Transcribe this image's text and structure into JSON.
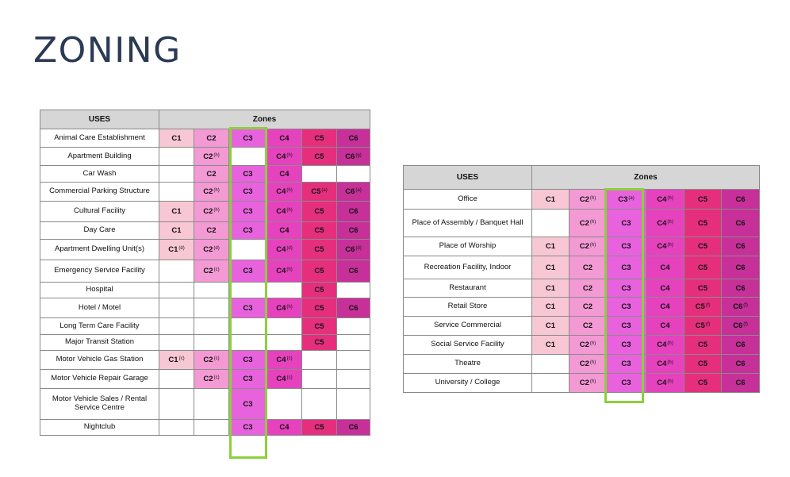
{
  "title": "ZONING",
  "colors": {
    "c1": "#f7c7d3",
    "c2": "#f39ad4",
    "c3": "#e862de",
    "c4": "#e642be",
    "c5": "#e52f7d",
    "c6": "#c63098",
    "header": "#d6d6d6",
    "highlight": "#8ccf3c"
  },
  "table_left": {
    "uses_header": "USES",
    "zones_header": "Zones",
    "columns": [
      "C1",
      "C2",
      "C3",
      "C4",
      "C5",
      "C6"
    ],
    "rows": [
      {
        "use": "Animal Care Establishment",
        "cells": [
          {
            "t": "C1"
          },
          {
            "t": "C2"
          },
          {
            "t": "C3"
          },
          {
            "t": "C4"
          },
          {
            "t": "C5"
          },
          {
            "t": "C6"
          }
        ]
      },
      {
        "use": "Apartment Building",
        "cells": [
          null,
          {
            "t": "C2",
            "s": "(h)"
          },
          null,
          {
            "t": "C4",
            "s": "(h)"
          },
          {
            "t": "C5"
          },
          {
            "t": "C6",
            "s": "(g)"
          }
        ]
      },
      {
        "use": "Car Wash",
        "cells": [
          null,
          {
            "t": "C2"
          },
          {
            "t": "C3"
          },
          {
            "t": "C4"
          },
          null,
          null
        ]
      },
      {
        "use": "Commercial Parking Structure",
        "cells": [
          null,
          {
            "t": "C2",
            "s": "(h)"
          },
          {
            "t": "C3"
          },
          {
            "t": "C4",
            "s": "(h)"
          },
          {
            "t": "C5",
            "s": "(a)"
          },
          {
            "t": "C6",
            "s": "(a)"
          }
        ]
      },
      {
        "use": "Cultural Facility",
        "cells": [
          {
            "t": "C1"
          },
          {
            "t": "C2",
            "s": "(h)"
          },
          {
            "t": "C3"
          },
          {
            "t": "C4",
            "s": "(h)"
          },
          {
            "t": "C5"
          },
          {
            "t": "C6"
          }
        ]
      },
      {
        "use": "Day Care",
        "cells": [
          {
            "t": "C1"
          },
          {
            "t": "C2"
          },
          {
            "t": "C3"
          },
          {
            "t": "C4"
          },
          {
            "t": "C5"
          },
          {
            "t": "C6"
          }
        ]
      },
      {
        "use": "Apartment Dwelling Unit(s)",
        "cells": [
          {
            "t": "C1",
            "s": "(d)"
          },
          {
            "t": "C2",
            "s": "(d)"
          },
          null,
          {
            "t": "C4",
            "s": "(d)"
          },
          {
            "t": "C5"
          },
          {
            "t": "C6",
            "s": "(d)"
          }
        ]
      },
      {
        "use": "Emergency Service Facility",
        "cells": [
          null,
          {
            "t": "C2",
            "s": "(c)"
          },
          {
            "t": "C3"
          },
          {
            "t": "C4",
            "s": "(h)"
          },
          {
            "t": "C5"
          },
          {
            "t": "C6"
          }
        ]
      },
      {
        "use": "Hospital",
        "cells": [
          null,
          null,
          null,
          null,
          {
            "t": "C5"
          },
          null
        ]
      },
      {
        "use": "Hotel / Motel",
        "cells": [
          null,
          null,
          {
            "t": "C3"
          },
          {
            "t": "C4",
            "s": "(h)"
          },
          {
            "t": "C5"
          },
          {
            "t": "C6"
          }
        ]
      },
      {
        "use": "Long Term Care Facility",
        "cells": [
          null,
          null,
          null,
          null,
          {
            "t": "C5"
          },
          null
        ]
      },
      {
        "use": "Major Transit Station",
        "cells": [
          null,
          null,
          null,
          null,
          {
            "t": "C5"
          },
          null
        ]
      },
      {
        "use": "Motor Vehicle Gas Station",
        "cells": [
          {
            "t": "C1",
            "s": "(c)"
          },
          {
            "t": "C2",
            "s": "(c)"
          },
          {
            "t": "C3"
          },
          {
            "t": "C4",
            "s": "(c)"
          },
          null,
          null
        ]
      },
      {
        "use": "Motor Vehicle Repair Garage",
        "cells": [
          null,
          {
            "t": "C2",
            "s": "(c)"
          },
          {
            "t": "C3"
          },
          {
            "t": "C4",
            "s": "(c)"
          },
          null,
          null
        ]
      },
      {
        "use": "Motor Vehicle Sales / Rental Service Centre",
        "cells": [
          null,
          null,
          {
            "t": "C3"
          },
          null,
          null,
          null
        ]
      },
      {
        "use": "Nightclub",
        "cells": [
          null,
          null,
          {
            "t": "C3"
          },
          {
            "t": "C4"
          },
          {
            "t": "C5"
          },
          {
            "t": "C6"
          }
        ]
      }
    ]
  },
  "table_right": {
    "uses_header": "USES",
    "zones_header": "Zones",
    "columns": [
      "C1",
      "C2",
      "C3",
      "C4",
      "C5",
      "C6"
    ],
    "rows": [
      {
        "use": "Office",
        "cells": [
          {
            "t": "C1"
          },
          {
            "t": "C2",
            "s": "(h)"
          },
          {
            "t": "C3",
            "s": "(a)"
          },
          {
            "t": "C4",
            "s": "(h)"
          },
          {
            "t": "C5"
          },
          {
            "t": "C6"
          }
        ]
      },
      {
        "use": "Place of Assembly / Banquet Hall",
        "cells": [
          null,
          {
            "t": "C2",
            "s": "(h)"
          },
          {
            "t": "C3"
          },
          {
            "t": "C4",
            "s": "(h)"
          },
          {
            "t": "C5"
          },
          {
            "t": "C6"
          }
        ]
      },
      {
        "use": "Place of Worship",
        "cells": [
          {
            "t": "C1"
          },
          {
            "t": "C2",
            "s": "(h)"
          },
          {
            "t": "C3"
          },
          {
            "t": "C4",
            "s": "(h)"
          },
          {
            "t": "C5"
          },
          {
            "t": "C6"
          }
        ]
      },
      {
        "use": "Recreation Facility, Indoor",
        "cells": [
          {
            "t": "C1"
          },
          {
            "t": "C2"
          },
          {
            "t": "C3"
          },
          {
            "t": "C4"
          },
          {
            "t": "C5"
          },
          {
            "t": "C6"
          }
        ]
      },
      {
        "use": "Restaurant",
        "cells": [
          {
            "t": "C1"
          },
          {
            "t": "C2"
          },
          {
            "t": "C3"
          },
          {
            "t": "C4"
          },
          {
            "t": "C5"
          },
          {
            "t": "C6"
          }
        ]
      },
      {
        "use": "Retail Store",
        "cells": [
          {
            "t": "C1"
          },
          {
            "t": "C2"
          },
          {
            "t": "C3"
          },
          {
            "t": "C4"
          },
          {
            "t": "C5",
            "s": "(f)"
          },
          {
            "t": "C6",
            "s": "(f)"
          }
        ]
      },
      {
        "use": "Service Commercial",
        "cells": [
          {
            "t": "C1"
          },
          {
            "t": "C2"
          },
          {
            "t": "C3"
          },
          {
            "t": "C4"
          },
          {
            "t": "C5",
            "s": "(f)"
          },
          {
            "t": "C6",
            "s": "(f)"
          }
        ]
      },
      {
        "use": "Social Service Facility",
        "cells": [
          {
            "t": "C1"
          },
          {
            "t": "C2",
            "s": "(h)"
          },
          {
            "t": "C3"
          },
          {
            "t": "C4",
            "s": "(h)"
          },
          {
            "t": "C5"
          },
          {
            "t": "C6"
          }
        ]
      },
      {
        "use": "Theatre",
        "cells": [
          null,
          {
            "t": "C2",
            "s": "(h)"
          },
          {
            "t": "C3"
          },
          {
            "t": "C4",
            "s": "(h)"
          },
          {
            "t": "C5"
          },
          {
            "t": "C6"
          }
        ]
      },
      {
        "use": "University / College",
        "cells": [
          null,
          {
            "t": "C2",
            "s": "(h)"
          },
          {
            "t": "C3"
          },
          {
            "t": "C4",
            "s": "(h)"
          },
          {
            "t": "C5"
          },
          {
            "t": "C6"
          }
        ]
      }
    ]
  }
}
